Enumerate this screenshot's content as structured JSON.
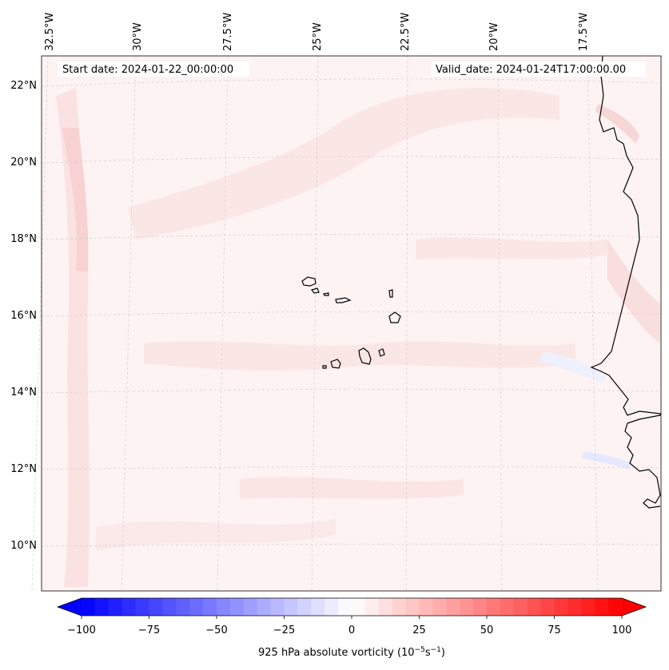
{
  "map": {
    "start_date_label": "Start date: 2024-01-22_00:00:00",
    "valid_date_label": "Valid_date: 2024-01-24T17:00:00.00",
    "lon_ticks": [
      "32.5°W",
      "30°W",
      "27.5°W",
      "25°W",
      "22.5°W",
      "20°W",
      "17.5°W"
    ],
    "lat_ticks": [
      "22°N",
      "20°N",
      "18°N",
      "16°N",
      "14°N",
      "12°N",
      "10°N"
    ],
    "background_color": "#fdf3f3"
  },
  "colorbar": {
    "ticks": [
      "−100",
      "−75",
      "−50",
      "−25",
      "0",
      "25",
      "50",
      "75",
      "100"
    ],
    "label_text": "925 hPa absolute vorticity (10",
    "label_exp1": "−5",
    "label_mid": "s",
    "label_exp2": "−1",
    "label_end": ")",
    "min_color": "#0000ff",
    "mid_color": "#ffffff",
    "max_color": "#ff0000"
  }
}
